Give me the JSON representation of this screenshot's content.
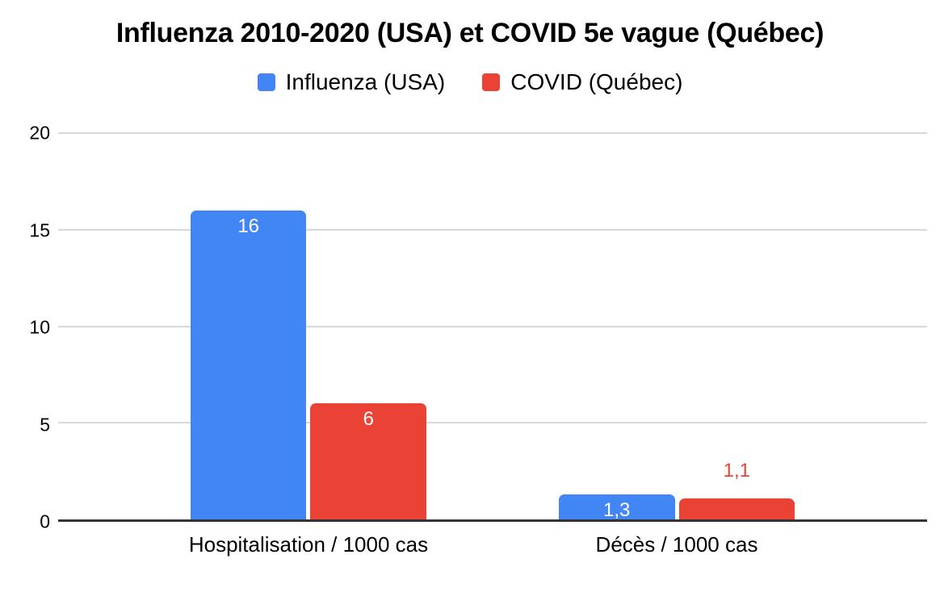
{
  "chart_data": {
    "type": "bar",
    "title": "Influenza 2010-2020 (USA) et COVID 5e vague (Québec)",
    "categories": [
      "Hospitalisation / 1000 cas",
      "Décès / 1000 cas"
    ],
    "series": [
      {
        "name": "Influenza (USA)",
        "color": "#4285F4",
        "values": [
          16,
          1.3
        ],
        "value_labels": [
          "16",
          "1,3"
        ]
      },
      {
        "name": "COVID (Québec)",
        "color": "#EA4335",
        "values": [
          6,
          1.1
        ],
        "value_labels": [
          "6",
          "1,1"
        ]
      }
    ],
    "xlabel": "",
    "ylabel": "",
    "ylim": [
      0,
      20
    ],
    "yticks": [
      0,
      5,
      10,
      15,
      20
    ],
    "grid": true,
    "legend_position": "top",
    "colors": {
      "grid_line": "#d9d9d9",
      "baseline": "#333333",
      "text": "#000000",
      "value_label_inside": "#ffffff"
    }
  }
}
